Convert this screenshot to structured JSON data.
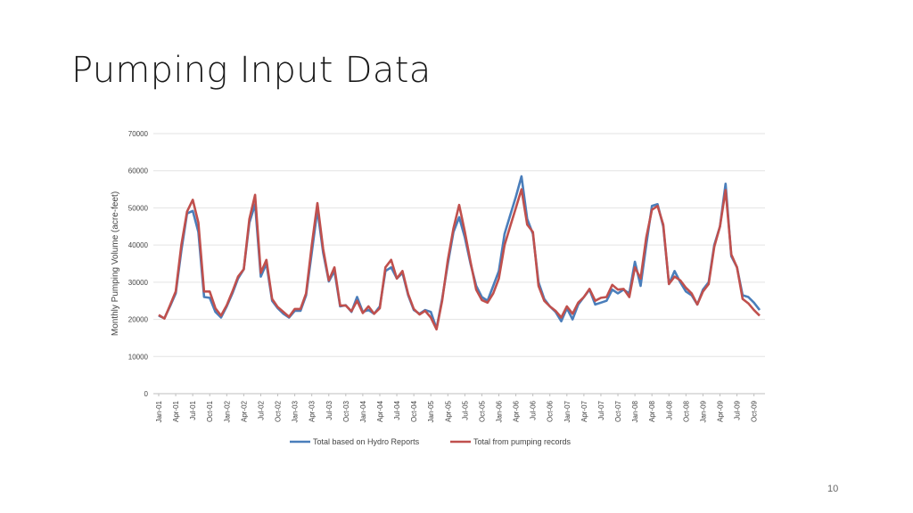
{
  "slide": {
    "title": "Pumping Input Data",
    "page_number": "10"
  },
  "chart_data": {
    "type": "line",
    "title": "",
    "xlabel": "",
    "ylabel": "Monthly Pumping Volume (acre-feet)",
    "ylim": [
      0,
      70000
    ],
    "yticks": [
      0,
      10000,
      20000,
      30000,
      40000,
      50000,
      60000,
      70000
    ],
    "grid": true,
    "legend_position": "bottom",
    "x_tick_labels": [
      "Jan-01",
      "Apr-01",
      "Jul-01",
      "Oct-01",
      "Jan-02",
      "Apr-02",
      "Jul-02",
      "Oct-02",
      "Jan-03",
      "Apr-03",
      "Jul-03",
      "Oct-03",
      "Jan-04",
      "Apr-04",
      "Jul-04",
      "Oct-04",
      "Jan-05",
      "Apr-05",
      "Jul-05",
      "Oct-05",
      "Jan-06",
      "Apr-06",
      "Jul-06",
      "Oct-06",
      "Jan-07",
      "Apr-07",
      "Jul-07",
      "Oct-07",
      "Jan-08",
      "Apr-08",
      "Jul-08",
      "Oct-08",
      "Jan-09",
      "Apr-09",
      "Jul-09",
      "Oct-09"
    ],
    "x_start": "Jan-01",
    "x_frequency": "monthly",
    "series": [
      {
        "name": "Total based on Hydro Reports",
        "color": "#4a7ebb",
        "values": [
          21000,
          20300,
          23500,
          27000,
          38500,
          48500,
          49200,
          43500,
          26000,
          25800,
          22000,
          20500,
          23500,
          27000,
          31000,
          33500,
          46000,
          51000,
          31500,
          35000,
          25000,
          23000,
          21500,
          20500,
          22300,
          22300,
          26500,
          38000,
          49500,
          38000,
          30200,
          33000,
          23500,
          23800,
          22000,
          26000,
          22000,
          22500,
          21500,
          23500,
          33000,
          34000,
          31000,
          32500,
          26500,
          22500,
          21500,
          22500,
          22000,
          17500,
          25500,
          35000,
          43500,
          47500,
          42000,
          35000,
          29000,
          26000,
          25000,
          29000,
          33000,
          43000,
          48000,
          53000,
          58500,
          47000,
          43000,
          30000,
          25500,
          23500,
          22000,
          19500,
          23000,
          20000,
          24000,
          26000,
          28000,
          24000,
          24500,
          25000,
          28000,
          27000,
          28000,
          27000,
          35500,
          29000,
          40000,
          50500,
          51000,
          45000,
          29500,
          33000,
          30000,
          27500,
          26500,
          24000,
          28000,
          30000,
          40000,
          45000,
          56500,
          37000,
          34000,
          26500,
          26000,
          24500,
          22500
        ],
        "note": ""
      },
      {
        "name": "Total from pumping records",
        "color": "#c0504d",
        "values": [
          21200,
          20200,
          23800,
          27500,
          40000,
          49000,
          52200,
          46000,
          27500,
          27500,
          23000,
          21000,
          23800,
          27500,
          31500,
          33500,
          47000,
          53500,
          32500,
          36000,
          25500,
          23300,
          22000,
          20700,
          22800,
          22800,
          27000,
          40000,
          51300,
          39000,
          30500,
          34000,
          23700,
          23700,
          22200,
          25000,
          21700,
          23500,
          21500,
          23000,
          34000,
          36000,
          31000,
          33000,
          26800,
          22800,
          21300,
          22300,
          20500,
          17300,
          25000,
          36000,
          44500,
          50800,
          43500,
          35500,
          28000,
          25200,
          24500,
          27000,
          31000,
          40000,
          45000,
          50000,
          55000,
          45500,
          43500,
          29000,
          25000,
          23500,
          22300,
          20500,
          23500,
          21500,
          24500,
          26000,
          28200,
          25000,
          25800,
          26000,
          29300,
          28000,
          28200,
          26000,
          34000,
          31000,
          42000,
          49500,
          50500,
          45500,
          29500,
          31500,
          30500,
          28500,
          27000,
          24000,
          27500,
          29500,
          39500,
          45000,
          54800,
          37500,
          34000,
          25500,
          24300,
          22500,
          21000
        ]
      }
    ]
  }
}
